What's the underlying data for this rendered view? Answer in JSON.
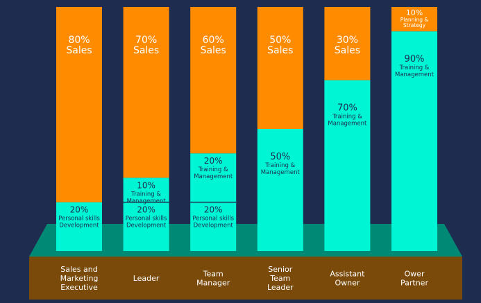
{
  "chart_data": {
    "type": "bar",
    "stacked": true,
    "categories": [
      [
        "Sales and",
        "Marketing",
        "Executive"
      ],
      [
        "Leader"
      ],
      [
        "Team",
        "Manager"
      ],
      [
        "Senior",
        "Team",
        "Leader"
      ],
      [
        "Assistant",
        "Owner"
      ],
      [
        "Ower",
        "Partner"
      ]
    ],
    "ylim": [
      0,
      100
    ],
    "series": [
      {
        "name": "Personal skills Development",
        "label_lines": [
          "Personal skills",
          "Development"
        ],
        "color": "#00f5d4",
        "values": [
          20,
          20,
          20,
          0,
          0,
          0
        ]
      },
      {
        "name": "Training & Management",
        "label_lines": [
          "Training &",
          "Management"
        ],
        "color": "#00f5d4",
        "values": [
          0,
          10,
          20,
          50,
          70,
          90
        ]
      },
      {
        "name": "Sales",
        "label_lines": [
          "Sales"
        ],
        "color": "#ff8c00",
        "values": [
          80,
          70,
          60,
          50,
          30,
          0
        ]
      },
      {
        "name": "Planning & Strategy",
        "label_lines": [
          "Planning &",
          "Strategy"
        ],
        "color": "#ff8c00",
        "values": [
          0,
          0,
          0,
          0,
          0,
          10
        ]
      }
    ],
    "colors": {
      "background": "#1e2d4f",
      "platform": "#008a76",
      "base_band": "#7a4a0a",
      "divider": "#1e2d4f",
      "text_light": "#ffffff",
      "text_dark": "#1e2d4f"
    }
  }
}
